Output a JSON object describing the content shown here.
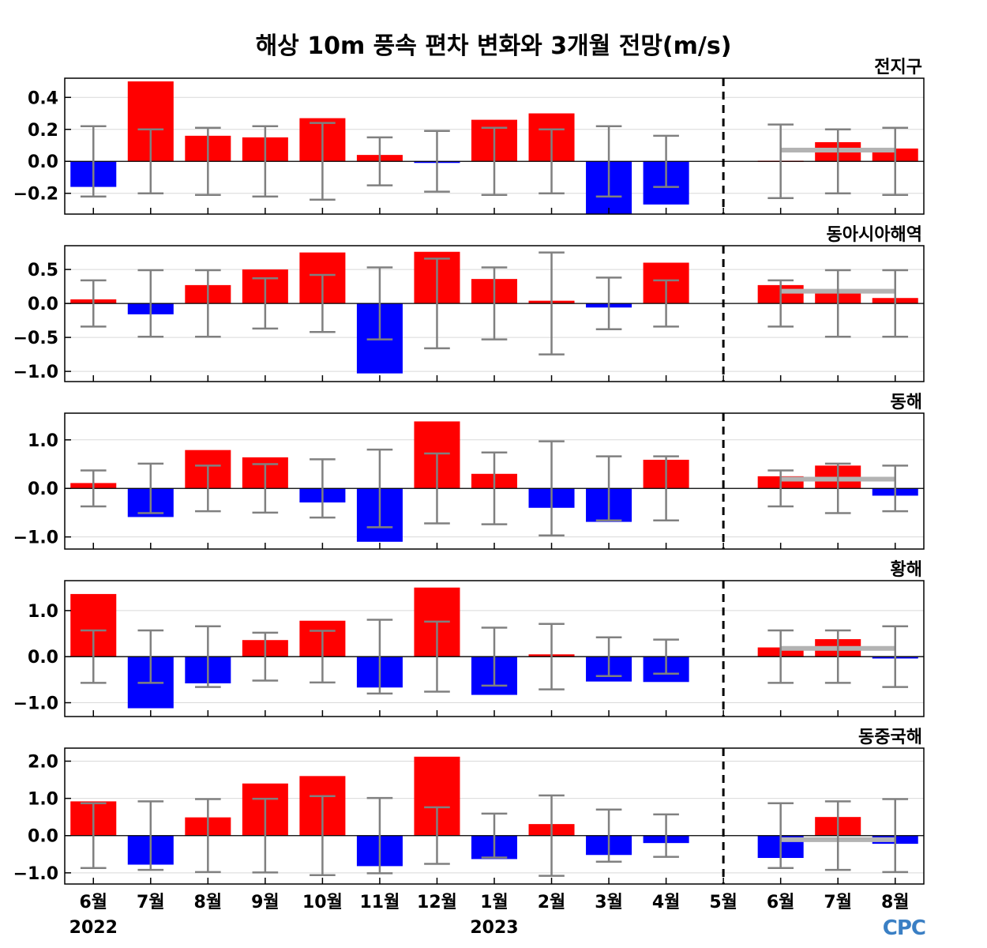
{
  "chart_data": {
    "type": "bar",
    "title": "해상 10m 풍속 편차 변화와 3개월 전망(m/s)",
    "categories": [
      "6월",
      "7월",
      "8월",
      "9월",
      "10월",
      "11월",
      "12월",
      "1월",
      "2월",
      "3월",
      "4월",
      "5월",
      "6월",
      "7월",
      "8월"
    ],
    "year_labels": [
      {
        "index": 0,
        "text": "2022"
      },
      {
        "index": 7,
        "text": "2023"
      }
    ],
    "colors": {
      "positive": "#ff0000",
      "negative": "#0000ff",
      "error_bar": "#808080",
      "forecast_line": "#b3b3b3",
      "divider": "#000000"
    },
    "panels": [
      {
        "label": "전지구",
        "ylim": [
          -0.33,
          0.52
        ],
        "yticks": [
          -0.2,
          0.0,
          0.2,
          0.4
        ],
        "tick_labels": [
          "−0.2",
          "0.0",
          "0.2",
          "0.4"
        ],
        "values": [
          -0.16,
          0.5,
          0.16,
          0.15,
          0.27,
          0.04,
          -0.01,
          0.26,
          0.3,
          -0.33,
          -0.27,
          0.0,
          0.0,
          0.12,
          0.08
        ],
        "error": [
          0.22,
          0.2,
          0.21,
          0.22,
          0.24,
          0.15,
          0.19,
          0.21,
          0.2,
          0.22,
          0.16,
          null,
          0.23,
          0.2,
          0.21
        ],
        "forecast_mean": 0.07
      },
      {
        "label": "동아시아해역",
        "ylim": [
          -1.15,
          0.85
        ],
        "yticks": [
          -1.0,
          -0.5,
          0.0,
          0.5
        ],
        "tick_labels": [
          "−1.0",
          "−0.5",
          "0.0",
          "0.5"
        ],
        "values": [
          0.06,
          -0.16,
          0.27,
          0.5,
          0.75,
          -1.03,
          0.76,
          0.36,
          0.04,
          -0.06,
          0.6,
          0.0,
          0.27,
          0.18,
          0.08
        ],
        "error": [
          0.34,
          0.49,
          0.49,
          0.37,
          0.42,
          0.53,
          0.66,
          0.53,
          0.75,
          0.38,
          0.34,
          null,
          0.34,
          0.49,
          0.49
        ],
        "forecast_mean": 0.18
      },
      {
        "label": "동해",
        "ylim": [
          -1.25,
          1.55
        ],
        "yticks": [
          -1.0,
          0.0,
          1.0
        ],
        "tick_labels": [
          "−1.0",
          "0.0",
          "1.0"
        ],
        "values": [
          0.11,
          -0.59,
          0.79,
          0.64,
          -0.29,
          -1.1,
          1.38,
          0.3,
          -0.4,
          -0.69,
          0.59,
          0.0,
          0.25,
          0.47,
          -0.15
        ],
        "error": [
          0.37,
          0.51,
          0.47,
          0.5,
          0.6,
          0.8,
          0.72,
          0.74,
          0.97,
          0.66,
          0.66,
          null,
          0.37,
          0.51,
          0.47
        ],
        "forecast_mean": 0.19
      },
      {
        "label": "황해",
        "ylim": [
          -1.3,
          1.65
        ],
        "yticks": [
          -1.0,
          0.0,
          1.0
        ],
        "tick_labels": [
          "−1.0",
          "0.0",
          "1.0"
        ],
        "values": [
          1.36,
          -1.12,
          -0.58,
          0.36,
          0.78,
          -0.67,
          1.5,
          -0.83,
          0.05,
          -0.54,
          -0.55,
          0.0,
          0.2,
          0.38,
          -0.04
        ],
        "error": [
          0.57,
          0.57,
          0.66,
          0.52,
          0.56,
          0.8,
          0.76,
          0.63,
          0.71,
          0.42,
          0.37,
          null,
          0.57,
          0.57,
          0.66
        ],
        "forecast_mean": 0.18
      },
      {
        "label": "동중국해",
        "ylim": [
          -1.3,
          2.35
        ],
        "yticks": [
          -1.0,
          0.0,
          1.0,
          2.0
        ],
        "tick_labels": [
          "−1.0",
          "0.0",
          "1.0",
          "2.0"
        ],
        "values": [
          0.92,
          -0.78,
          0.49,
          1.4,
          1.6,
          -0.82,
          2.12,
          -0.63,
          0.31,
          -0.52,
          -0.2,
          0.0,
          -0.6,
          0.5,
          -0.22
        ],
        "error": [
          0.87,
          0.92,
          0.98,
          0.99,
          1.06,
          1.01,
          0.76,
          0.59,
          1.08,
          0.7,
          0.57,
          null,
          0.87,
          0.92,
          0.98
        ],
        "forecast_mean": -0.11
      }
    ],
    "divider_after_index": 11,
    "forecast_range": [
      12,
      14
    ]
  },
  "logo": "CPC"
}
